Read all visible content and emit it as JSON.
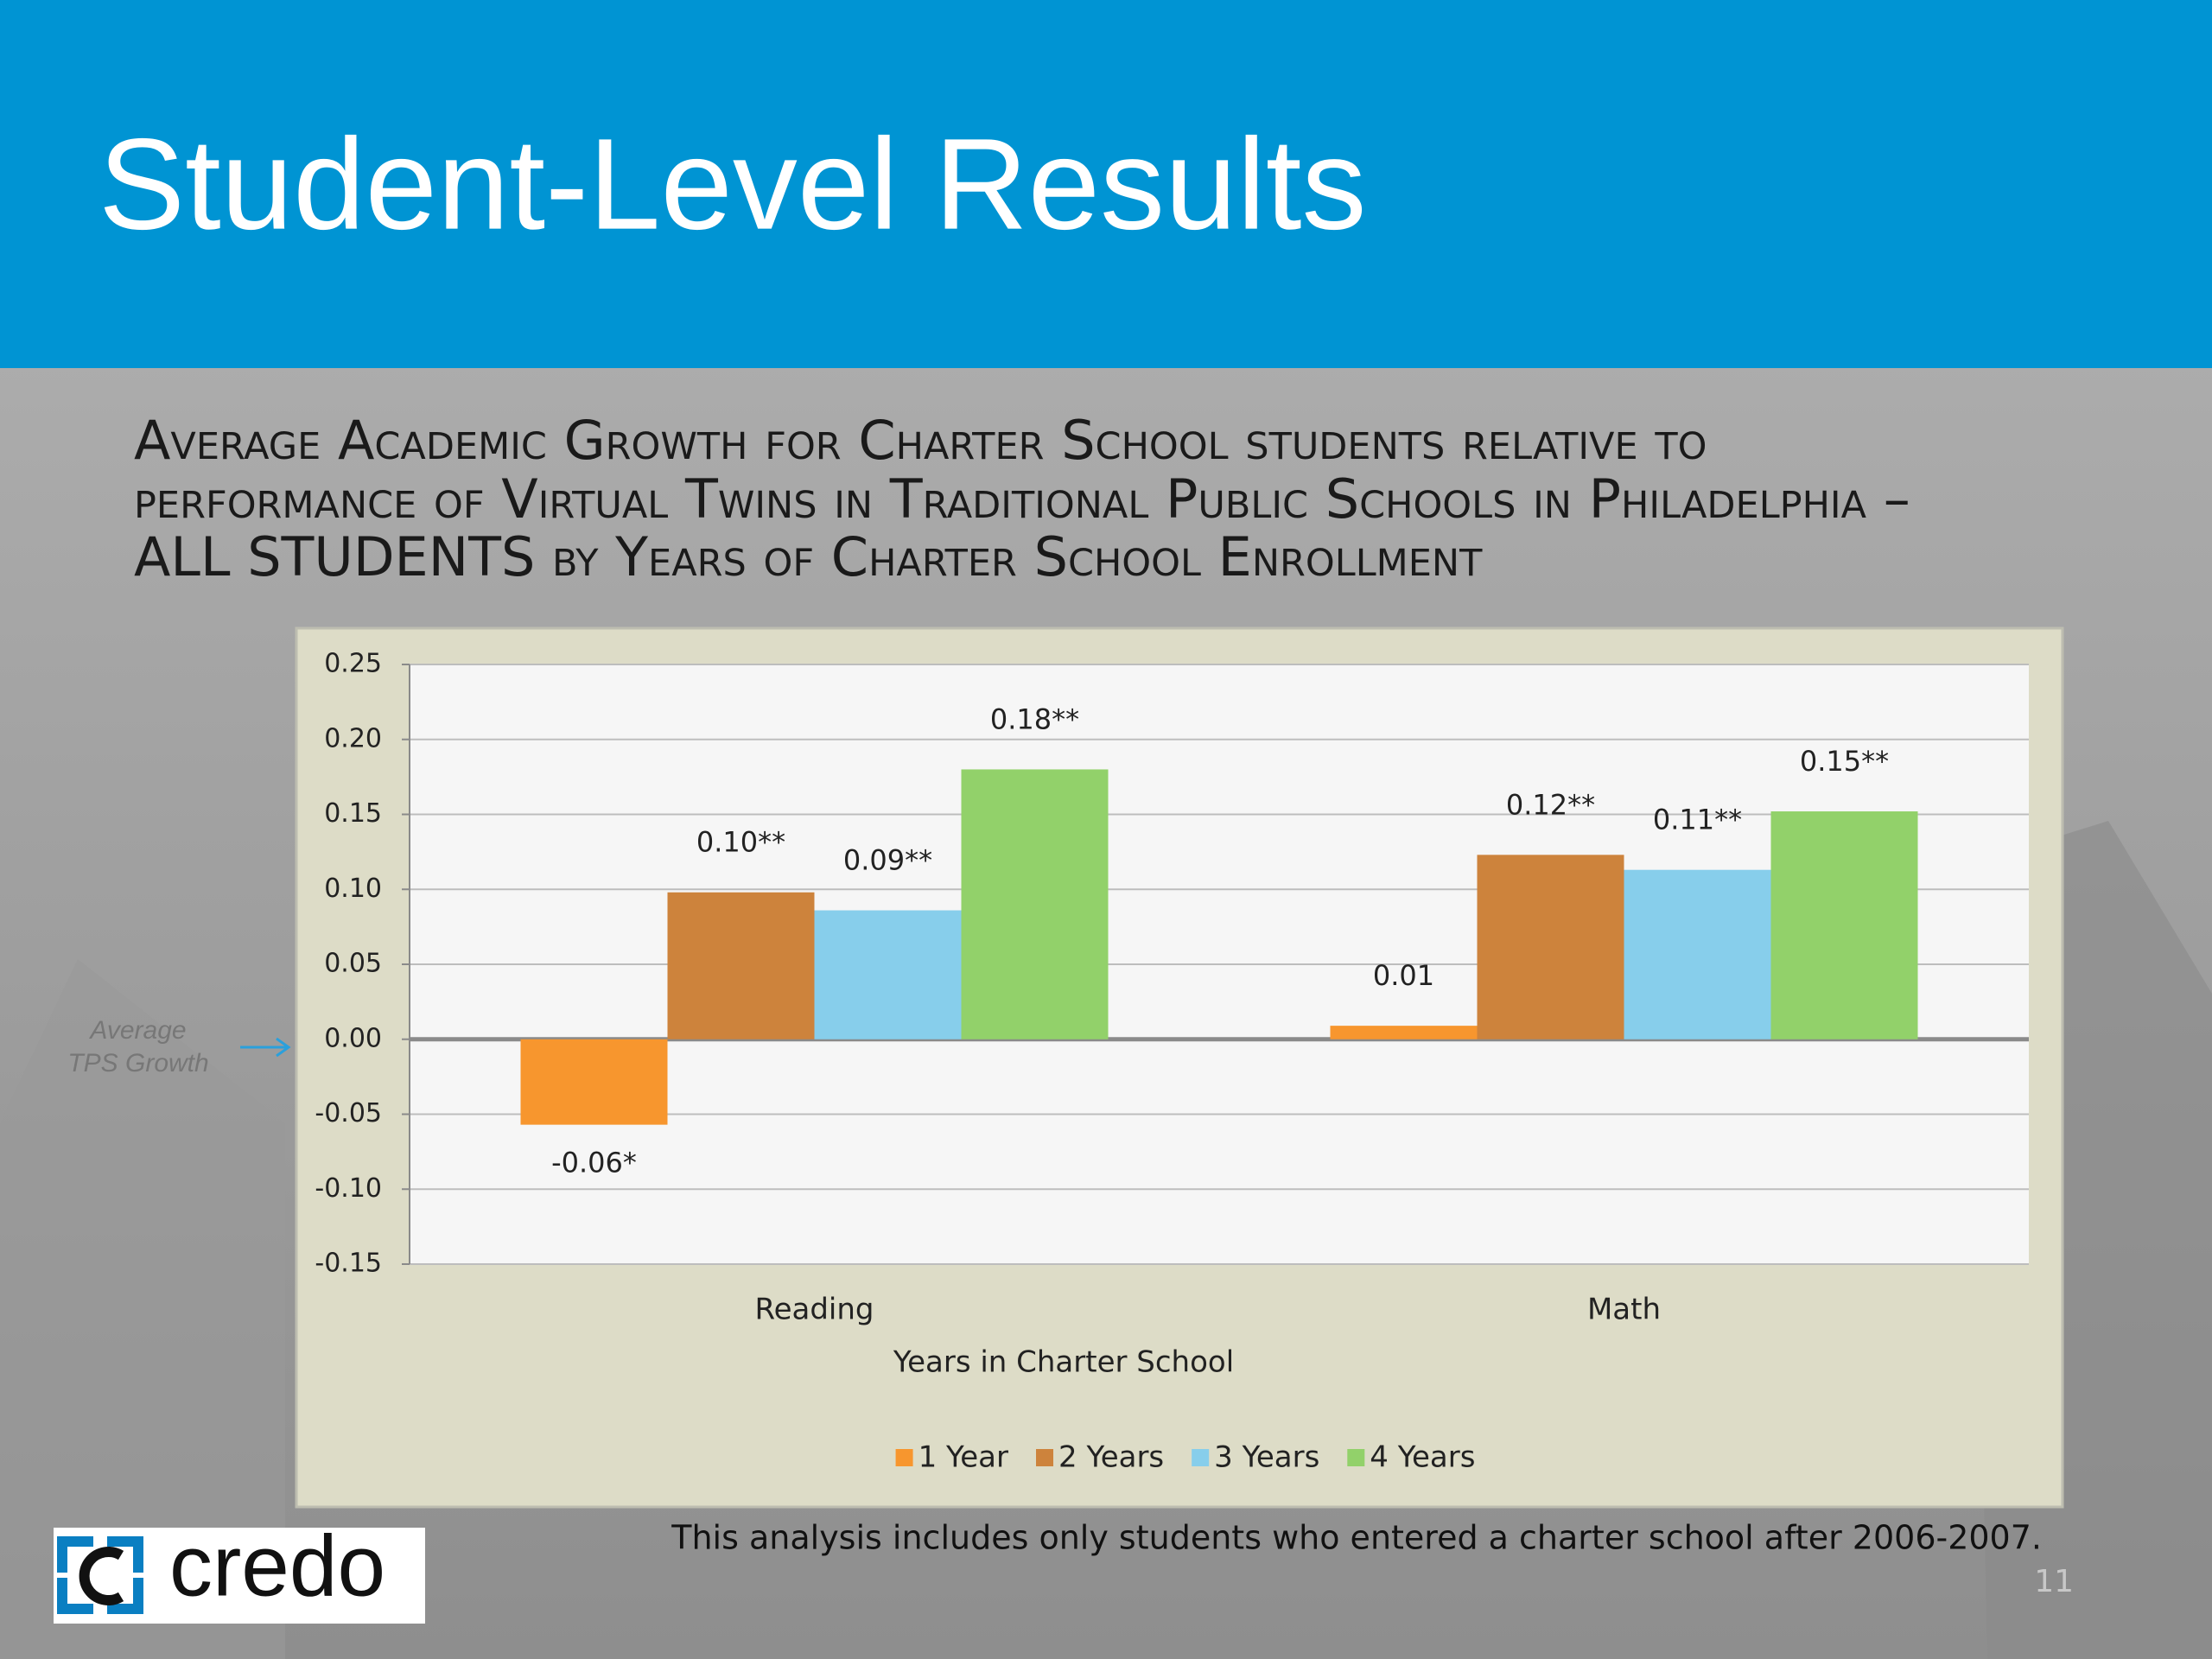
{
  "slide": {
    "title": "Student-Level Results",
    "footnote": "This analysis includes only students who entered a charter school after 2006-2007.",
    "page_number": "11",
    "logo": "credo"
  },
  "chart_data": {
    "type": "bar",
    "title": [
      "Average Academic Growth for Charter School students relative to",
      "performance of Virtual Twins in Traditional Public Schools in Philadelphia –",
      "ALL STUDENTS by Years of Charter School Enrollment"
    ],
    "x_label": "Years in Charter School",
    "annotation": [
      "Average",
      "TPS Growth"
    ],
    "categories": [
      "Reading",
      "Math"
    ],
    "series": [
      {
        "name": "1 Year",
        "color": "#f7962e",
        "values": [
          -0.057,
          0.009
        ],
        "value_labels": [
          "-0.06*",
          "0.01"
        ]
      },
      {
        "name": "2 Years",
        "color": "#cd833c",
        "values": [
          0.098,
          0.123
        ],
        "value_labels": [
          "0.10**",
          "0.12**"
        ]
      },
      {
        "name": "3 Years",
        "color": "#87ceeb",
        "values": [
          0.086,
          0.113
        ],
        "value_labels": [
          "0.09**",
          "0.11**"
        ]
      },
      {
        "name": "4 Years",
        "color": "#92d16a",
        "values": [
          0.18,
          0.152
        ],
        "value_labels": [
          "0.18**",
          "0.15**"
        ]
      }
    ],
    "ylim": [
      -0.15,
      0.25
    ],
    "yticks": [
      -0.15,
      {
        "value": -0.1,
        "label": "-0.10"
      },
      -0.05,
      {
        "value": 0,
        "label": "0.00"
      },
      0.05,
      {
        "value": 0.1,
        "label": "0.10"
      },
      0.15,
      {
        "value": 0.2,
        "label": "0.20"
      },
      0.25
    ],
    "grid": true,
    "legend": "bottom"
  }
}
